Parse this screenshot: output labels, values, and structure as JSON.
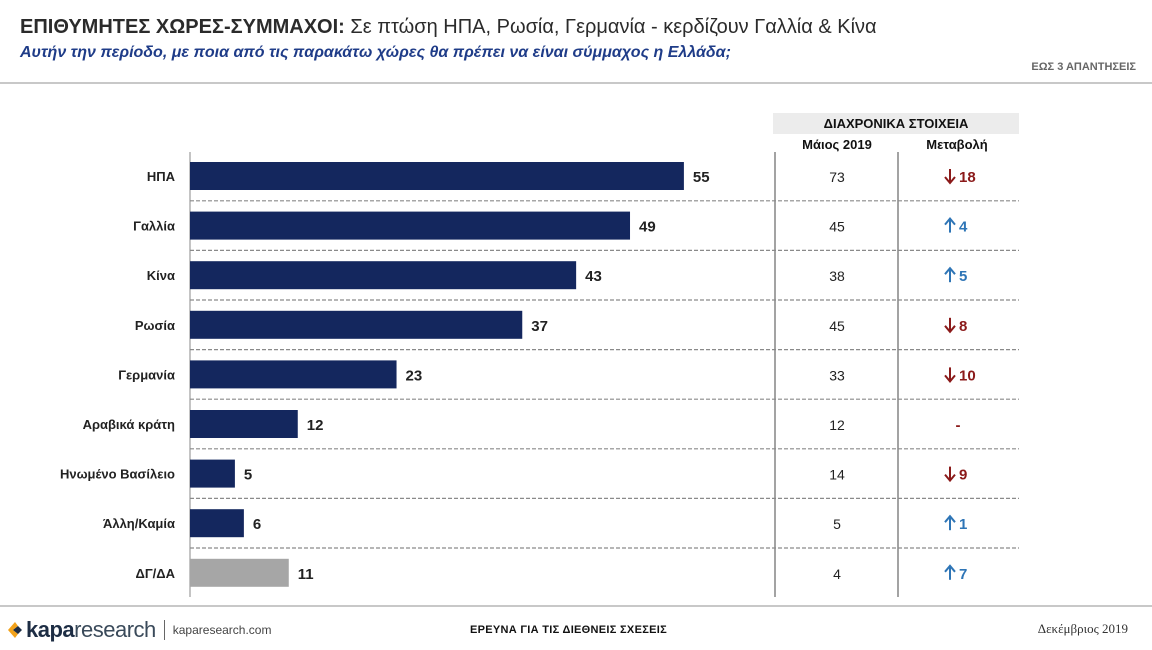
{
  "header": {
    "title_bold": "ΕΠΙΘΥΜΗΤΕΣ ΧΩΡΕΣ-ΣΥΜΜΑΧΟΙ:",
    "title_rest": " Σε πτώση ΗΠΑ, Ρωσία, Γερμανία -  κερδίζουν Γαλλία & Κίνα",
    "subtitle": "Αυτήν την περίοδο, με ποια από τις παρακάτω χώρες θα πρέπει να είναι σύμμαχος η Ελλάδα;",
    "note": "ΕΩΣ 3 ΑΠΑΝΤΗΣΕΙΣ"
  },
  "historical": {
    "header": "ΔΙΑΧΡΟΝΙΚΑ ΣΤΟΙΧΕΙΑ",
    "col_prev": "Μάιος 2019",
    "col_change": "Μεταβολή"
  },
  "colors": {
    "bar": "#14275e",
    "bar_dk": "#a6a6a6",
    "up": "#2e75b6",
    "down": "#8b1a1a"
  },
  "chart_data": {
    "type": "bar",
    "orientation": "horizontal",
    "categories": [
      "ΗΠΑ",
      "Γαλλία",
      "Κίνα",
      "Ρωσία",
      "Γερμανία",
      "Αραβικά κράτη",
      "Ηνωμένο Βασίλειο",
      "Άλλη/Καμία",
      "ΔΓ/ΔΑ"
    ],
    "values": [
      55,
      49,
      43,
      37,
      23,
      12,
      5,
      6,
      11
    ],
    "xlim": [
      0,
      60
    ],
    "grid": false,
    "table": {
      "may_2019": [
        "73",
        "45",
        "38",
        "45",
        "33",
        "12",
        "14",
        "5",
        "4"
      ],
      "change": [
        {
          "dir": "down",
          "value": "18"
        },
        {
          "dir": "up",
          "value": "4"
        },
        {
          "dir": "up",
          "value": "5"
        },
        {
          "dir": "down",
          "value": "8"
        },
        {
          "dir": "down",
          "value": "10"
        },
        {
          "dir": "none",
          "value": "-"
        },
        {
          "dir": "down",
          "value": "9"
        },
        {
          "dir": "up",
          "value": "1"
        },
        {
          "dir": "up",
          "value": "7"
        }
      ]
    }
  },
  "footer": {
    "logo_kapa": "kapa",
    "logo_research": "research",
    "url": "kaparesearch.com",
    "center": "ΕΡΕΥΝΑ ΓΙΑ ΤΙΣ ΔΙΕΘΝΕΙΣ ΣΧΕΣΕΙΣ",
    "date": "Δεκέμβριος 2019"
  }
}
